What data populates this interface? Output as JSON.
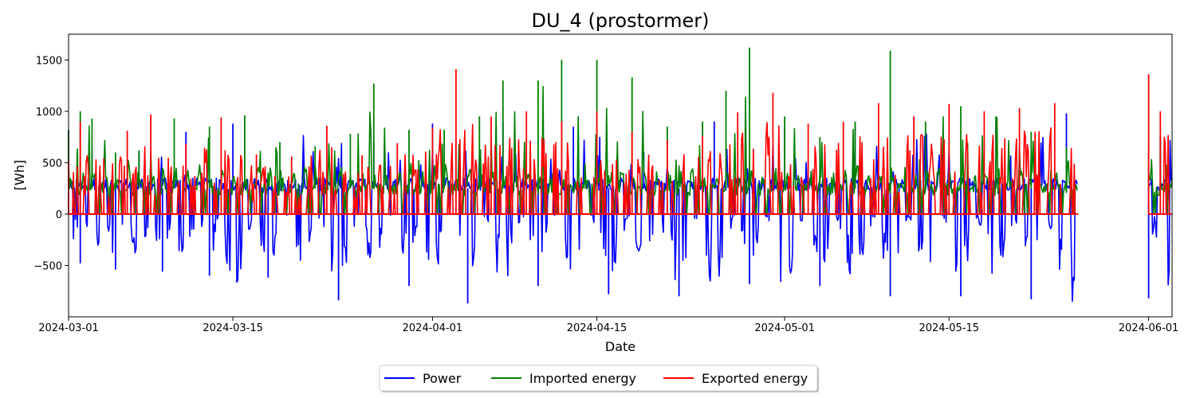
{
  "chart_data": {
    "type": "line",
    "title": "DU_4 (prostormer)",
    "xlabel": "Date",
    "ylabel": "[Wh]",
    "xlim": [
      "2024-03-01",
      "2024-06-03"
    ],
    "ylim": [
      -1000,
      1750
    ],
    "x_ticks": [
      "2024-03-01",
      "2024-03-15",
      "2024-04-01",
      "2024-04-15",
      "2024-05-01",
      "2024-05-15",
      "2024-06-01"
    ],
    "y_ticks": [
      -500,
      0,
      500,
      1000,
      1500
    ],
    "y_tick_labels": [
      "−500",
      "0",
      "500",
      "1000",
      "1500"
    ],
    "grid": false,
    "legend_position": "bottom-center",
    "data_gap": [
      "2024-05-26",
      "2024-06-01"
    ],
    "series": [
      {
        "name": "Power",
        "color": "#0000ff",
        "x": [
          "2024-03-01",
          "2024-03-02",
          "2024-03-03",
          "2024-03-05",
          "2024-03-07",
          "2024-03-09",
          "2024-03-11",
          "2024-03-13",
          "2024-03-15",
          "2024-03-18",
          "2024-03-21",
          "2024-03-24",
          "2024-03-27",
          "2024-03-30",
          "2024-04-01",
          "2024-04-04",
          "2024-04-07",
          "2024-04-10",
          "2024-04-13",
          "2024-04-16",
          "2024-04-19",
          "2024-04-22",
          "2024-04-25",
          "2024-04-28",
          "2024-05-01",
          "2024-05-04",
          "2024-05-07",
          "2024-05-10",
          "2024-05-13",
          "2024-05-16",
          "2024-05-19",
          "2024-05-22",
          "2024-05-25",
          "2024-06-01",
          "2024-06-02"
        ],
        "values": [
          820,
          -480,
          650,
          -540,
          600,
          -560,
          800,
          -600,
          880,
          -620,
          600,
          -840,
          700,
          -700,
          880,
          -870,
          900,
          -700,
          850,
          -780,
          600,
          -800,
          900,
          -680,
          860,
          -700,
          850,
          -800,
          800,
          -800,
          900,
          -830,
          980,
          -820,
          750
        ]
      },
      {
        "name": "Imported energy",
        "color": "#008000",
        "x": [
          "2024-03-01",
          "2024-03-02",
          "2024-03-03",
          "2024-03-05",
          "2024-03-07",
          "2024-03-10",
          "2024-03-13",
          "2024-03-16",
          "2024-03-19",
          "2024-03-22",
          "2024-03-25",
          "2024-03-27",
          "2024-03-30",
          "2024-04-02",
          "2024-04-05",
          "2024-04-07",
          "2024-04-10",
          "2024-04-12",
          "2024-04-15",
          "2024-04-18",
          "2024-04-21",
          "2024-04-24",
          "2024-04-26",
          "2024-04-28",
          "2024-05-01",
          "2024-05-04",
          "2024-05-07",
          "2024-05-10",
          "2024-05-13",
          "2024-05-16",
          "2024-05-19",
          "2024-05-22",
          "2024-05-25",
          "2024-06-01",
          "2024-06-02"
        ],
        "values": [
          820,
          1000,
          930,
          600,
          620,
          930,
          850,
          960,
          700,
          660,
          780,
          1270,
          820,
          820,
          950,
          1300,
          1300,
          1500,
          1500,
          1330,
          850,
          900,
          1200,
          1620,
          950,
          750,
          900,
          1590,
          900,
          1050,
          950,
          800,
          650,
          620,
          750
        ]
      },
      {
        "name": "Exported energy",
        "color": "#ff0000",
        "x": [
          "2024-03-01",
          "2024-03-02",
          "2024-03-04",
          "2024-03-06",
          "2024-03-08",
          "2024-03-11",
          "2024-03-14",
          "2024-03-17",
          "2024-03-20",
          "2024-03-23",
          "2024-03-26",
          "2024-03-29",
          "2024-04-01",
          "2024-04-03",
          "2024-04-06",
          "2024-04-09",
          "2024-04-12",
          "2024-04-15",
          "2024-04-18",
          "2024-04-21",
          "2024-04-24",
          "2024-04-27",
          "2024-04-30",
          "2024-05-03",
          "2024-05-06",
          "2024-05-09",
          "2024-05-12",
          "2024-05-15",
          "2024-05-18",
          "2024-05-21",
          "2024-05-24",
          "2024-05-26",
          "2024-06-01",
          "2024-06-02"
        ],
        "values": [
          520,
          900,
          540,
          810,
          970,
          680,
          940,
          580,
          560,
          860,
          570,
          690,
          840,
          1410,
          950,
          1000,
          900,
          1000,
          800,
          720,
          760,
          990,
          1180,
          880,
          900,
          1080,
          950,
          1070,
          1000,
          1030,
          1080,
          990,
          1360,
          1000
        ]
      }
    ]
  }
}
